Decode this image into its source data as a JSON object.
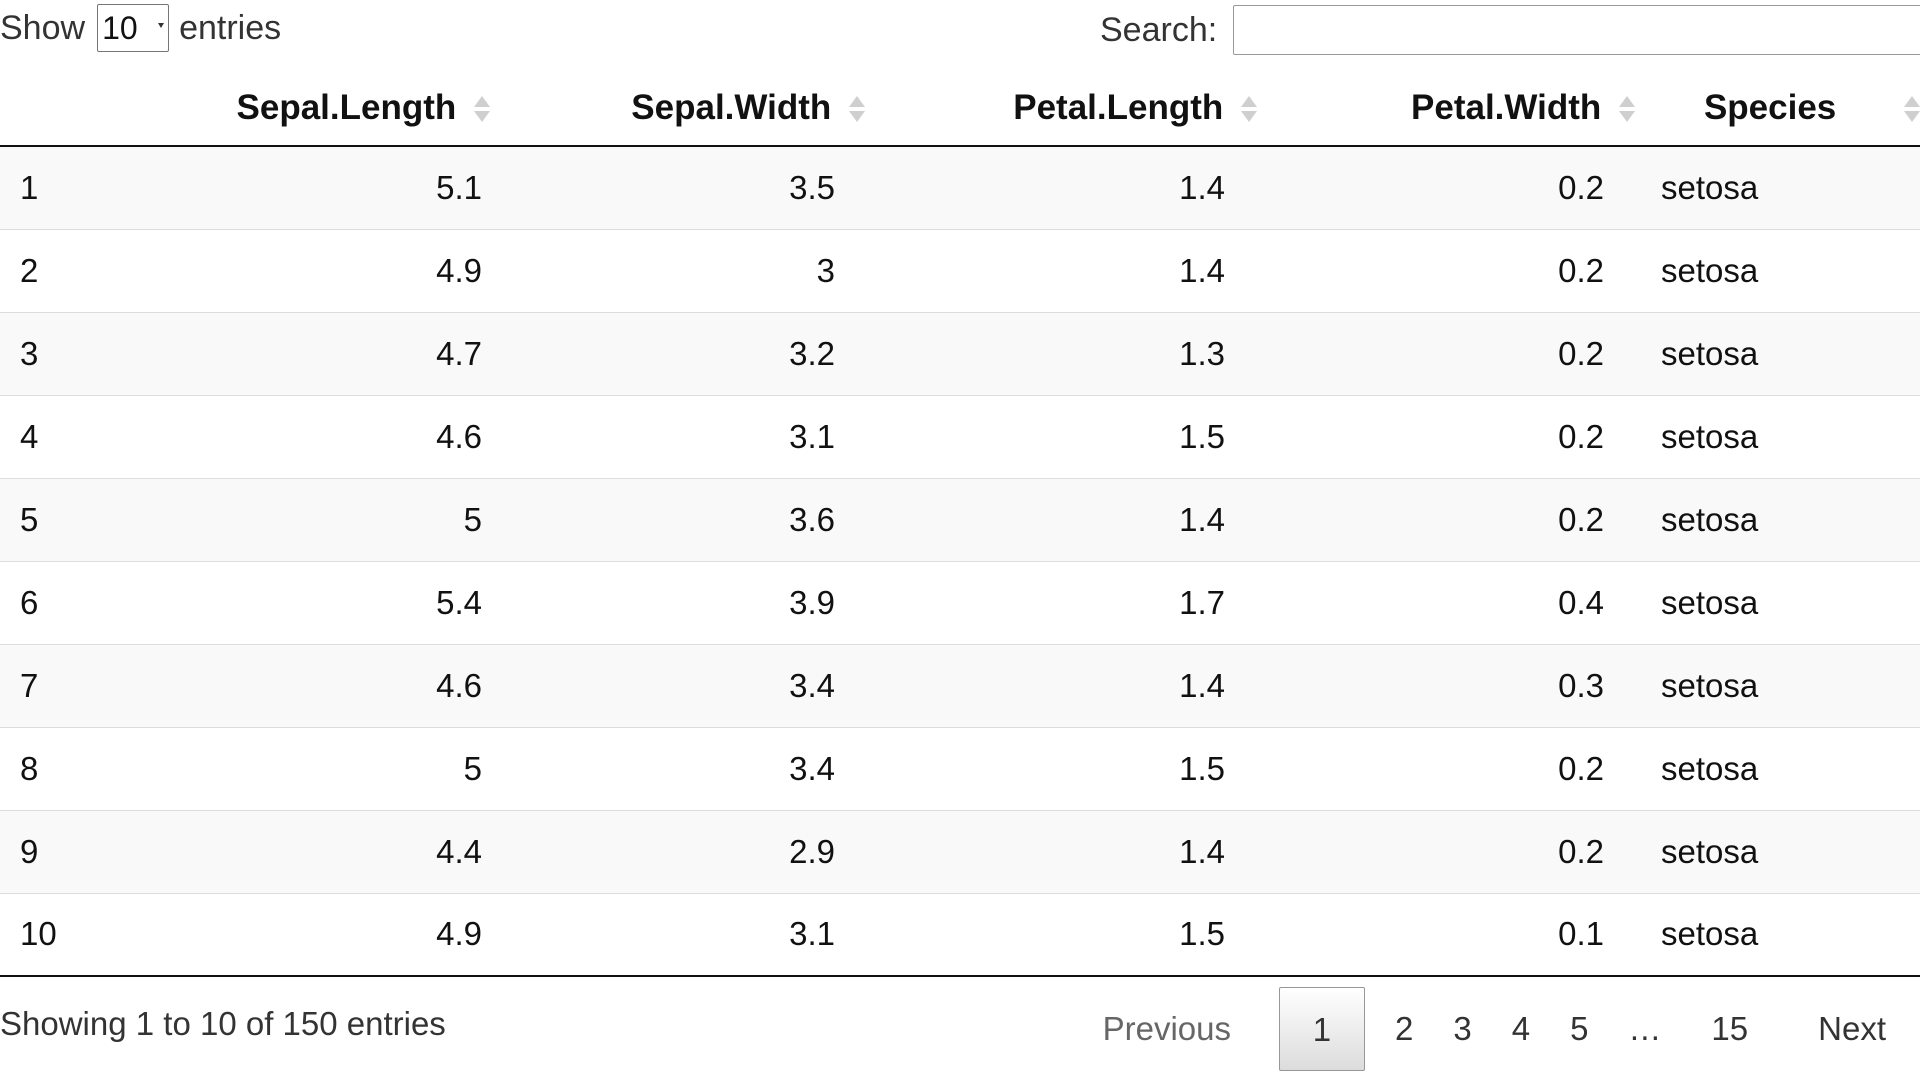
{
  "length_menu": {
    "prefix": "Show",
    "selected": "10",
    "suffix": "entries"
  },
  "search": {
    "label": "Search:",
    "value": ""
  },
  "table": {
    "columns": [
      "",
      "Sepal.Length",
      "Sepal.Width",
      "Petal.Length",
      "Petal.Width",
      "Species"
    ],
    "rows": [
      [
        "1",
        "5.1",
        "3.5",
        "1.4",
        "0.2",
        "setosa"
      ],
      [
        "2",
        "4.9",
        "3",
        "1.4",
        "0.2",
        "setosa"
      ],
      [
        "3",
        "4.7",
        "3.2",
        "1.3",
        "0.2",
        "setosa"
      ],
      [
        "4",
        "4.6",
        "3.1",
        "1.5",
        "0.2",
        "setosa"
      ],
      [
        "5",
        "5",
        "3.6",
        "1.4",
        "0.2",
        "setosa"
      ],
      [
        "6",
        "5.4",
        "3.9",
        "1.7",
        "0.4",
        "setosa"
      ],
      [
        "7",
        "4.6",
        "3.4",
        "1.4",
        "0.3",
        "setosa"
      ],
      [
        "8",
        "5",
        "3.4",
        "1.5",
        "0.2",
        "setosa"
      ],
      [
        "9",
        "4.4",
        "2.9",
        "1.4",
        "0.2",
        "setosa"
      ],
      [
        "10",
        "4.9",
        "3.1",
        "1.5",
        "0.1",
        "setosa"
      ]
    ]
  },
  "info": "Showing 1 to 10 of 150 entries",
  "pagination": {
    "previous": "Previous",
    "pages": [
      "1",
      "2",
      "3",
      "4",
      "5",
      "…",
      "15"
    ],
    "current": "1",
    "next": "Next"
  }
}
